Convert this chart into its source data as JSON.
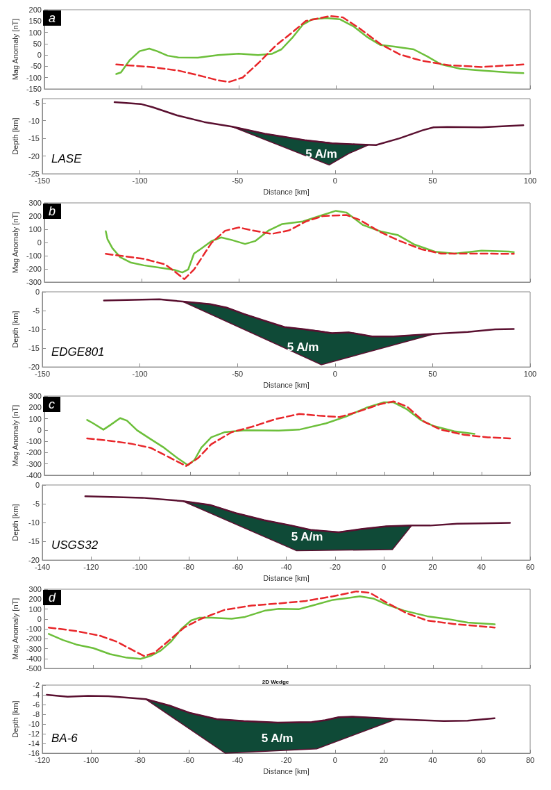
{
  "chart_data": [
    {
      "type": "line",
      "title": "a",
      "ylabel": "Mag Anomaly [nT]",
      "xlim": [
        -150,
        100
      ],
      "xticks": [
        -150,
        -100,
        -50,
        0,
        50,
        100
      ],
      "ylim": [
        -150,
        200
      ],
      "yticks": [
        -150,
        -100,
        -50,
        0,
        50,
        100,
        150,
        200
      ],
      "tick_labels": "y",
      "marker": "none",
      "series": [
        {
          "color": "#6cbf3a",
          "line_style": "solid",
          "x": [
            -113,
            -110.6,
            -106,
            -101,
            -96,
            -92,
            -86.6,
            -81,
            -71,
            -60.6,
            -50,
            -40,
            -33,
            -28,
            -22,
            -17,
            -12,
            -5,
            2,
            9,
            16,
            23,
            30,
            40,
            47,
            54,
            64,
            75,
            89,
            96.5
          ],
          "values": [
            -84,
            -77,
            -22,
            17,
            28,
            17,
            -3,
            -11,
            -12,
            0,
            6,
            0,
            5,
            25,
            80,
            134,
            158,
            163,
            158,
            127,
            80,
            44,
            37,
            25,
            -6,
            -41,
            -61,
            -69,
            -77,
            -80
          ]
        },
        {
          "color": "#e8262a",
          "line_style": "dashed",
          "x": [
            -113,
            -95,
            -81,
            -71,
            -60.6,
            -55,
            -48,
            -40,
            -31,
            -22,
            -15.5,
            -3,
            3.6,
            12,
            23,
            33,
            44,
            58,
            75,
            96.5
          ],
          "values": [
            -42,
            -53,
            -69,
            -89,
            -112,
            -119,
            -100,
            -37,
            41,
            103,
            150,
            172,
            166,
            119,
            48,
            2,
            -25,
            -45,
            -53,
            -42
          ]
        }
      ]
    },
    {
      "type": "line",
      "xlabel": "Distance [km]",
      "ylabel": "Depth [km]",
      "xlim": [
        -150,
        100
      ],
      "xticks": [
        -150,
        -100,
        -50,
        0,
        50,
        100
      ],
      "ylim": [
        -25,
        -3.8
      ],
      "yticks": [
        -25,
        -20,
        -15,
        -10,
        -5
      ],
      "marker": "none",
      "annotations": [
        "LASE",
        "5 A/m"
      ],
      "series": [
        {
          "type": "area",
          "color": "#0f4a37",
          "x": [
            -52.8,
            -36,
            -15.5,
            -3,
            -1.6,
            7,
            10.6,
            17,
            7,
            -3
          ],
          "values": [
            -11.7,
            -13.7,
            -15.5,
            -16.2,
            -16.4,
            -16.6,
            -16.7,
            -16.9,
            -19.3,
            -22.5
          ]
        },
        {
          "color": "#5a1030",
          "line_style": "solid",
          "x": [
            -113,
            -99.6,
            -93.5,
            -81,
            -67,
            -52.8,
            -36,
            -15.5,
            -1.6,
            10.6,
            21,
            33,
            45,
            50.5,
            57.5,
            75,
            96.5
          ],
          "values": [
            -4.8,
            -5.3,
            -6.2,
            -8.5,
            -10.4,
            -11.7,
            -13.7,
            -15.5,
            -16.4,
            -16.7,
            -16.9,
            -15,
            -12.7,
            -11.9,
            -11.8,
            -11.9,
            -11.3
          ]
        }
      ]
    },
    {
      "type": "line",
      "title": "b",
      "ylabel": "Mag Anomaly [nT]",
      "xlim": [
        -150,
        100
      ],
      "xticks": [
        -150,
        -100,
        -50,
        0,
        50,
        100
      ],
      "ylim": [
        -300,
        300
      ],
      "yticks": [
        -300,
        -200,
        -100,
        0,
        100,
        200,
        300
      ],
      "tick_labels": "y",
      "marker": "none",
      "series": [
        {
          "color": "#6cbf3a",
          "line_style": "solid",
          "x": [
            -118.4,
            -117.5,
            -115,
            -111,
            -105.7,
            -98.8,
            -90,
            -83,
            -79,
            -76,
            -73,
            -69,
            -64,
            -59,
            -53.6,
            -46.7,
            -41.5,
            -34.5,
            -27.6,
            -17,
            -8.5,
            0,
            5.4,
            14,
            23,
            31.8,
            40.5,
            51,
            61,
            75,
            89,
            91.6
          ],
          "values": [
            86,
            24,
            -43,
            -111,
            -151,
            -173,
            -192,
            -208,
            -227,
            -205,
            -84,
            -43,
            11,
            38,
            19,
            -11,
            11,
            92,
            140,
            159,
            200,
            240,
            227,
            132,
            84,
            57,
            -16,
            -70,
            -84,
            -62,
            -68,
            -73
          ]
        },
        {
          "color": "#e8262a",
          "line_style": "dashed",
          "x": [
            -118.4,
            -98.8,
            -88,
            -83,
            -78,
            -73,
            -64,
            -57,
            -50,
            -43,
            -33,
            -24,
            -15.5,
            -6.8,
            5.4,
            12,
            23,
            33,
            44,
            54,
            75,
            91.6
          ],
          "values": [
            -86,
            -124,
            -165,
            -219,
            -278,
            -205,
            -3,
            89,
            114,
            92,
            65,
            92,
            159,
            200,
            208,
            173,
            78,
            11,
            -51,
            -84,
            -84,
            -86
          ]
        }
      ]
    },
    {
      "type": "line",
      "xlabel": "Distance [km]",
      "ylabel": "Depth [km]",
      "xlim": [
        -150,
        100
      ],
      "xticks": [
        -150,
        -100,
        -50,
        0,
        50,
        100
      ],
      "ylim": [
        -20,
        0
      ],
      "yticks": [
        -20,
        -15,
        -10,
        -5,
        0
      ],
      "marker": "none",
      "annotations": [
        "EDGE801",
        "5 A/m"
      ],
      "series": [
        {
          "type": "area",
          "color": "#0f4a37",
          "x": [
            -78,
            -64,
            -55.6,
            -46.7,
            -36,
            -25.9,
            -15.5,
            -7,
            -1.6,
            7,
            19,
            30,
            51,
            -7
          ],
          "values": [
            -2.6,
            -3.3,
            -4.2,
            -5.9,
            -7.7,
            -9.4,
            -10,
            -10.5,
            -11,
            -10.8,
            -11.9,
            -11.9,
            -11.2,
            -19.4
          ]
        },
        {
          "color": "#5a1030",
          "line_style": "solid",
          "x": [
            -118.4,
            -98.8,
            -90,
            -78,
            -64,
            -55.6,
            -46.7,
            -36,
            -25.9,
            -15.5,
            -1.6,
            7,
            19,
            30,
            51,
            68,
            82,
            91.6
          ],
          "values": [
            -2.3,
            -2.1,
            -2,
            -2.6,
            -3.3,
            -4.2,
            -5.9,
            -7.7,
            -9.4,
            -10,
            -11,
            -10.8,
            -11.9,
            -11.9,
            -11.2,
            -10.7,
            -10,
            -9.9
          ]
        }
      ]
    },
    {
      "type": "line",
      "title": "c",
      "ylabel": "Mag Anomaly [nT]",
      "xlim": [
        -140,
        60
      ],
      "xticks": [
        -140,
        -120,
        -100,
        -80,
        -60,
        -40,
        -20,
        0,
        20,
        40,
        60
      ],
      "ylim": [
        -400,
        300
      ],
      "yticks": [
        -400,
        -300,
        -200,
        -100,
        0,
        100,
        200,
        300
      ],
      "tick_labels": "y",
      "marker": "none",
      "series": [
        {
          "color": "#6cbf3a",
          "line_style": "solid",
          "x": [
            -122.4,
            -119.9,
            -115.7,
            -112.9,
            -108.8,
            -106,
            -101.8,
            -96.3,
            -90.7,
            -85.1,
            -80.9,
            -78.2,
            -75.4,
            -71.3,
            -65.7,
            -57.4,
            -43.5,
            -35.1,
            -24,
            -15.7,
            -7.4,
            -0.4,
            3.75,
            9.3,
            14.9,
            20.4,
            28.75,
            37.1
          ],
          "values": [
            89,
            59,
            3,
            43,
            105,
            83,
            -3,
            -80,
            -157,
            -250,
            -311,
            -265,
            -157,
            -65,
            -19,
            -3,
            -6,
            3,
            59,
            120,
            197,
            244,
            244,
            182,
            89,
            34,
            -12,
            -34
          ]
        },
        {
          "color": "#e8262a",
          "line_style": "dashed",
          "x": [
            -122.4,
            -112.9,
            -104.6,
            -96.3,
            -89.3,
            -81.7,
            -76.8,
            -71.3,
            -62.9,
            -54.6,
            -44.9,
            -35.1,
            -26.8,
            -18.5,
            -10.1,
            -1.8,
            3.75,
            9.3,
            16.25,
            23.2,
            32.9,
            42.6,
            51.7
          ],
          "values": [
            -74,
            -96,
            -120,
            -157,
            -234,
            -318,
            -250,
            -126,
            -19,
            28,
            96,
            142,
            126,
            114,
            167,
            228,
            253,
            207,
            74,
            3,
            -43,
            -65,
            -74
          ]
        }
      ]
    },
    {
      "type": "line",
      "xlabel": "Distance [km]",
      "ylabel": "Depth [km]",
      "xlim": [
        -140,
        60
      ],
      "xticks": [
        -140,
        -120,
        -100,
        -80,
        -60,
        -40,
        -20,
        0,
        20,
        40,
        60
      ],
      "ylim": [
        -20,
        0
      ],
      "yticks": [
        -20,
        -15,
        -10,
        -5,
        0
      ],
      "marker": "none",
      "annotations": [
        "USGS32",
        "5 A/m"
      ],
      "series": [
        {
          "type": "area",
          "color": "#0f4a37",
          "x": [
            -82.4,
            -71.3,
            -60.1,
            -49,
            -37.9,
            -29.6,
            -18.5,
            -8.75,
            1,
            11.4,
            3.5,
            -35.8
          ],
          "values": [
            -4.3,
            -5.3,
            -7.6,
            -9.4,
            -10.8,
            -12,
            -12.6,
            -11.7,
            -11,
            -10.8,
            -17.2,
            -17.5
          ]
        },
        {
          "color": "#5a1030",
          "line_style": "solid",
          "x": [
            -122.4,
            -99,
            -82.4,
            -71.3,
            -60.1,
            -49,
            -37.9,
            -29.6,
            -18.5,
            -8.75,
            1,
            11.4,
            19,
            30.1,
            40,
            51.7
          ],
          "values": [
            -3,
            -3.4,
            -4.3,
            -5.3,
            -7.6,
            -9.4,
            -10.8,
            -12,
            -12.6,
            -11.7,
            -11,
            -10.8,
            -10.8,
            -10.3,
            -10.2,
            -10.1
          ]
        }
      ]
    },
    {
      "type": "line",
      "title": "d",
      "ylabel": "Mag Anomaly [nT]",
      "xlim": [
        -120,
        80
      ],
      "xticks": [
        -120,
        -100,
        -80,
        -60,
        -40,
        -20,
        0,
        20,
        40,
        60,
        80
      ],
      "ylim": [
        -500,
        300
      ],
      "yticks": [
        -500,
        -400,
        -300,
        -200,
        -100,
        0,
        100,
        200,
        300
      ],
      "tick_labels": "y",
      "marker": "none",
      "series": [
        {
          "color": "#6cbf3a",
          "line_style": "solid",
          "x": [
            -118.2,
            -112.4,
            -106.8,
            -99.9,
            -92.9,
            -86,
            -80.4,
            -76.3,
            -72.1,
            -67.9,
            -63.75,
            -59.6,
            -56.1,
            -51.25,
            -42.9,
            -37.4,
            -29,
            -23.5,
            -15.1,
            -9.6,
            -1.25,
            9.9,
            15.4,
            21,
            27.9,
            37.6,
            46,
            54.3,
            65.4
          ],
          "values": [
            -152,
            -213,
            -259,
            -295,
            -356,
            -392,
            -403,
            -374,
            -320,
            -231,
            -105,
            -16,
            13,
            13,
            2,
            20,
            85,
            102,
            99,
            135,
            192,
            228,
            206,
            145,
            85,
            27,
            -1,
            -37,
            -55
          ]
        },
        {
          "color": "#e8262a",
          "line_style": "dashed",
          "x": [
            -118.2,
            -106.8,
            -97.1,
            -90.1,
            -84.6,
            -79,
            -74.9,
            -69.3,
            -62.4,
            -55.4,
            -45.7,
            -34.6,
            -23.5,
            -12.4,
            -1.25,
            8.5,
            14,
            21,
            29.3,
            37.6,
            48.75,
            65.4
          ],
          "values": [
            -87,
            -123,
            -170,
            -231,
            -303,
            -374,
            -346,
            -231,
            -87,
            2,
            92,
            135,
            156,
            181,
            228,
            278,
            264,
            163,
            56,
            -16,
            -52,
            -87
          ]
        }
      ]
    },
    {
      "type": "line",
      "title": "2D Wedge",
      "xlabel": "Distance [km]",
      "ylabel": "Depth [km]",
      "xlim": [
        -120,
        80
      ],
      "xticks": [
        -120,
        -100,
        -80,
        -60,
        -40,
        -20,
        0,
        20,
        40,
        60,
        80
      ],
      "ylim": [
        -16,
        -2
      ],
      "yticks": [
        -16,
        -14,
        -12,
        -10,
        -8,
        -6,
        -4,
        -2
      ],
      "marker": "none",
      "annotations": [
        "BA-6",
        "5 A/m"
      ],
      "series": [
        {
          "type": "area",
          "color": "#0f4a37",
          "x": [
            -77.6,
            -67.9,
            -59.6,
            -48.5,
            -37.4,
            -23.5,
            -9.6,
            -4,
            1.5,
            7.1,
            15.4,
            25.1,
            -7.5,
            -45
          ],
          "values": [
            -4.9,
            -6.2,
            -7.7,
            -9,
            -9.4,
            -9.7,
            -9.6,
            -9.2,
            -8.6,
            -8.5,
            -8.7,
            -9,
            -15.1,
            -16
          ]
        },
        {
          "color": "#5a1030",
          "line_style": "solid",
          "x": [
            -118.2,
            -109.6,
            -101.25,
            -92.9,
            -84.6,
            -77.6,
            -67.9,
            -59.6,
            -48.5,
            -37.4,
            -23.5,
            -9.6,
            -4,
            1.5,
            7.1,
            15.4,
            25.1,
            34.9,
            44.6,
            54.3,
            65.4
          ],
          "values": [
            -4,
            -4.4,
            -4.2,
            -4.3,
            -4.6,
            -4.9,
            -6.2,
            -7.7,
            -9,
            -9.4,
            -9.7,
            -9.6,
            -9.2,
            -8.6,
            -8.5,
            -8.7,
            -9,
            -9.2,
            -9.4,
            -9.3,
            -8.8
          ]
        }
      ]
    }
  ]
}
